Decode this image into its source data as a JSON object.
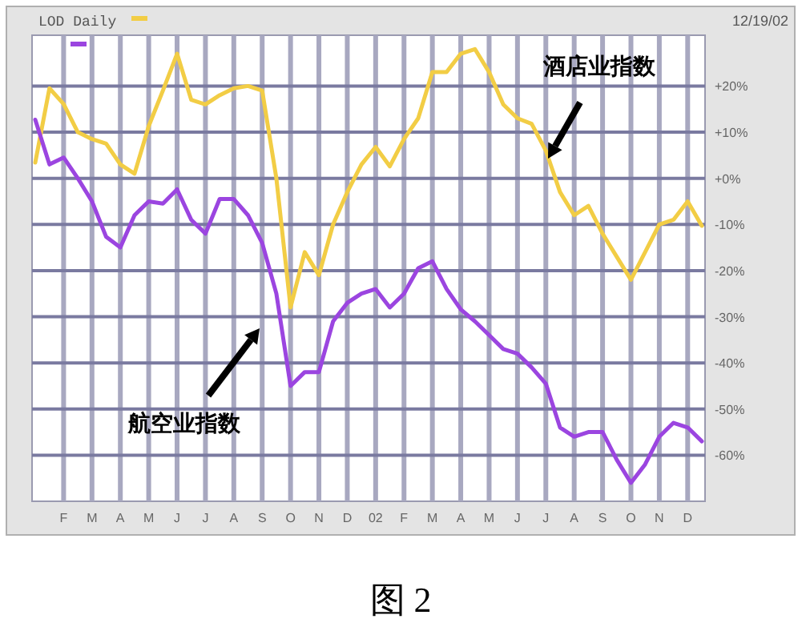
{
  "chart_data": {
    "type": "line",
    "title": "LOD Daily",
    "grid": true,
    "categories": [
      null,
      null,
      "F",
      null,
      "M",
      null,
      "A",
      null,
      "M",
      null,
      "J",
      null,
      "J",
      null,
      "A",
      null,
      "S",
      null,
      "O",
      null,
      "N",
      null,
      "D",
      null,
      "02",
      null,
      "F",
      null,
      "M",
      null,
      "A",
      null,
      "M",
      null,
      "J",
      null,
      "J",
      null,
      "A",
      null,
      "S",
      null,
      "O",
      null,
      "N",
      null,
      "D",
      null
    ],
    "ylim": [
      -70,
      31
    ],
    "yticks": [
      {
        "value": 20,
        "label": "+20%"
      },
      {
        "value": 10,
        "label": "+10%"
      },
      {
        "value": 0,
        "label": "+0%"
      },
      {
        "value": -10,
        "label": "-10%"
      },
      {
        "value": -20,
        "label": "-20%"
      },
      {
        "value": -30,
        "label": "-30%"
      },
      {
        "value": -40,
        "label": "-40%"
      },
      {
        "value": -50,
        "label": "-50%"
      },
      {
        "value": -60,
        "label": "-60%"
      }
    ],
    "series": [
      {
        "color": "#f2cd45",
        "values": [
          3.4,
          19.5,
          16.1,
          10,
          8.5,
          7.5,
          3,
          1,
          11.3,
          19,
          27,
          17,
          16,
          18,
          19.5,
          20,
          19,
          0,
          -28,
          -16,
          -21,
          -10,
          -3,
          3,
          6.8,
          2.6,
          8.5,
          13,
          23,
          23,
          27,
          28,
          23,
          16,
          13,
          11.8,
          6,
          -3,
          -8,
          -6,
          -12,
          -17,
          -22,
          -16,
          -10,
          -9,
          -5,
          -10.3
        ]
      },
      {
        "color": "#9b45e0",
        "values": [
          12.7,
          3,
          4.5,
          0,
          -5,
          -12.7,
          -15,
          -8,
          -5,
          -5.5,
          -2.4,
          -9,
          -12,
          -4.5,
          -4.5,
          -8,
          -14,
          -25,
          -45,
          -42,
          -42,
          -31,
          -27,
          -25,
          -24,
          -28,
          -25,
          -19.5,
          -18,
          -24,
          -28.4,
          -31,
          -34,
          -37,
          -38,
          -41,
          -44.5,
          -54,
          -56,
          -55,
          -55,
          -61,
          -66,
          -62,
          -56,
          -53,
          -54,
          -57
        ]
      }
    ],
    "annotations": [
      "12/19/02",
      "酒店业指数",
      "航空业指数",
      "图 2"
    ]
  }
}
